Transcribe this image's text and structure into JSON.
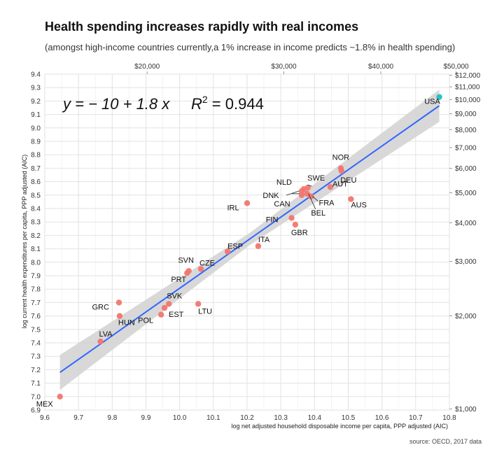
{
  "chart_data": {
    "type": "scatter",
    "title": "Health spending increases rapidly with real incomes",
    "subtitle": "(amongst high-income countries currently,a 1% increase in income predicts ~1.8% in health spending)",
    "source": "source: OECD, 2017 data",
    "xlabel": "log net adjusted household disposable income per capita, PPP adjusted (AIC)",
    "ylabel": "log current health expenditures per capita, PPP adjusted (AIC)",
    "xlim": [
      9.6,
      10.8
    ],
    "ylim": [
      6.9,
      9.4
    ],
    "x_ticks": [
      9.6,
      9.7,
      9.8,
      9.9,
      10.0,
      10.1,
      10.2,
      10.3,
      10.4,
      10.5,
      10.6,
      10.7,
      10.8
    ],
    "x_tick_labels": [
      "9.6",
      "9.7",
      "9.8",
      "9.9",
      "10.0",
      "10.1",
      "10.2",
      "10.3",
      "10.4",
      "10.5",
      "10.6",
      "10.7",
      "10.8"
    ],
    "y_ticks": [
      6.9,
      7.0,
      7.1,
      7.2,
      7.3,
      7.4,
      7.5,
      7.6,
      7.7,
      7.8,
      7.9,
      8.0,
      8.1,
      8.2,
      8.3,
      8.4,
      8.5,
      8.6,
      8.7,
      8.8,
      8.9,
      9.0,
      9.1,
      9.2,
      9.3,
      9.4
    ],
    "y_tick_labels": [
      "6.9",
      "7.0",
      "7.1",
      "7.2",
      "7.3",
      "7.4",
      "7.5",
      "7.6",
      "7.7",
      "7.8",
      "7.9",
      "8.0",
      "8.1",
      "8.2",
      "8.3",
      "8.4",
      "8.5",
      "8.6",
      "8.7",
      "8.8",
      "8.9",
      "9.0",
      "9.1",
      "9.2",
      "9.3",
      "9.4"
    ],
    "top_axis": [
      {
        "value": 20000,
        "label": "$20,000"
      },
      {
        "value": 30000,
        "label": "$30,000"
      },
      {
        "value": 40000,
        "label": "$40,000"
      },
      {
        "value": 50000,
        "label": "$50,000"
      }
    ],
    "right_axis": [
      {
        "value": 1000,
        "label": "$1,000"
      },
      {
        "value": 2000,
        "label": "$2,000"
      },
      {
        "value": 3000,
        "label": "$3,000"
      },
      {
        "value": 4000,
        "label": "$4,000"
      },
      {
        "value": 5000,
        "label": "$5,000"
      },
      {
        "value": 6000,
        "label": "$6,000"
      },
      {
        "value": 7000,
        "label": "$7,000"
      },
      {
        "value": 8000,
        "label": "$8,000"
      },
      {
        "value": 9000,
        "label": "$9,000"
      },
      {
        "value": 10000,
        "label": "$10,000"
      },
      {
        "value": 11000,
        "label": "$11,000"
      },
      {
        "value": 12000,
        "label": "$12,000"
      }
    ],
    "regression": {
      "label_lhs": "y = − 10 + 1.8 x",
      "label_r2_base": "R",
      "label_r2_sup": "2",
      "label_r2_rest": " = 0.944",
      "x_range": [
        9.645,
        10.77
      ],
      "y_range": [
        7.18,
        9.165
      ],
      "band_halfwidth": [
        0.13,
        0.045,
        0.12
      ],
      "color": "#3366ff",
      "band_color": "#d4d4d4"
    },
    "point_color": "#f2766e",
    "highlight_color": "#1fbfc3",
    "points": [
      {
        "label": "MEX",
        "x": 9.645,
        "y": 7.0
      },
      {
        "label": "LVA",
        "x": 9.765,
        "y": 7.41
      },
      {
        "label": "GRC",
        "x": 9.82,
        "y": 7.7
      },
      {
        "label": "HUN",
        "x": 9.822,
        "y": 7.6
      },
      {
        "label": "POL",
        "x": 9.945,
        "y": 7.61
      },
      {
        "label": "EST",
        "x": 9.955,
        "y": 7.66
      },
      {
        "label": "SVK",
        "x": 9.968,
        "y": 7.69
      },
      {
        "label": "PRT",
        "x": 10.022,
        "y": 7.92
      },
      {
        "label": "SVN",
        "x": 10.027,
        "y": 7.935
      },
      {
        "label": "LTU",
        "x": 10.055,
        "y": 7.69
      },
      {
        "label": "CZE",
        "x": 10.063,
        "y": 7.95
      },
      {
        "label": "ESP",
        "x": 10.142,
        "y": 8.08
      },
      {
        "label": "IRL",
        "x": 10.2,
        "y": 8.44
      },
      {
        "label": "ITA",
        "x": 10.233,
        "y": 8.12
      },
      {
        "label": "FIN",
        "x": 10.332,
        "y": 8.33
      },
      {
        "label": "GBR",
        "x": 10.343,
        "y": 8.28
      },
      {
        "label": "CAN",
        "x": 10.362,
        "y": 8.5
      },
      {
        "label": "DNK",
        "x": 10.362,
        "y": 8.53
      },
      {
        "label": "NLD",
        "x": 10.368,
        "y": 8.545
      },
      {
        "label": "BEL",
        "x": 10.378,
        "y": 8.51
      },
      {
        "label": "SWE",
        "x": 10.38,
        "y": 8.555
      },
      {
        "label": "FRA",
        "x": 10.39,
        "y": 8.49
      },
      {
        "label": "AUT",
        "x": 10.447,
        "y": 8.56
      },
      {
        "label": "NOR",
        "x": 10.478,
        "y": 8.7
      },
      {
        "label": "DEU",
        "x": 10.48,
        "y": 8.68
      },
      {
        "label": "AUS",
        "x": 10.508,
        "y": 8.47
      },
      {
        "label": "USA",
        "x": 10.77,
        "y": 9.23,
        "highlight": true
      }
    ]
  }
}
